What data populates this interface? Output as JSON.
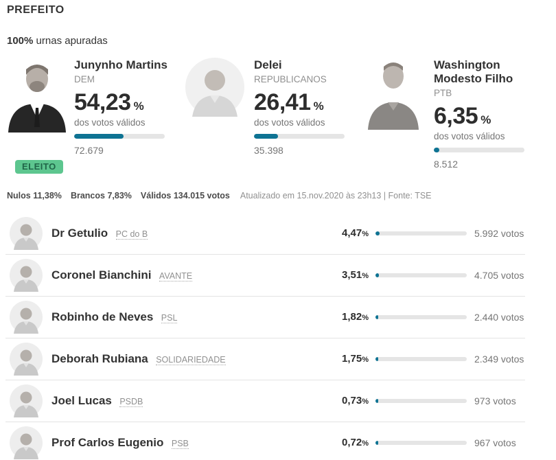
{
  "page": {
    "title": "PREFEITO",
    "apuracao_bold": "100%",
    "apuracao_rest": " urnas apuradas"
  },
  "labels": {
    "dos_votos": "dos votos válidos",
    "pct_symbol": "%"
  },
  "colors": {
    "accent_teal": "#0e7393",
    "bar_track": "#e5e5e5",
    "badge_green_bg": "#5dc68f",
    "badge_green_text": "#206648"
  },
  "top_candidates": [
    {
      "name": "Junynho Martins",
      "party": "DEM",
      "pct": "54,23",
      "pct_value": 54.23,
      "votes": "72.679",
      "badge": "ELEITO"
    },
    {
      "name": "Delei",
      "party": "REPUBLICANOS",
      "pct": "26,41",
      "pct_value": 26.41,
      "votes": "35.398",
      "badge": ""
    },
    {
      "name": "Washington Modesto Filho",
      "party": "PTB",
      "pct": "6,35",
      "pct_value": 6.35,
      "votes": "8.512",
      "badge": ""
    }
  ],
  "stats": {
    "nulos_label": "Nulos",
    "nulos_value": "11,38%",
    "brancos_label": "Brancos",
    "brancos_value": "7,83%",
    "validos_label": "Válidos",
    "validos_value": "134.015 votos",
    "updated": "Atualizado em 15.nov.2020 às 23h13 | Fonte: TSE"
  },
  "list": [
    {
      "name": "Dr Getulio",
      "party": "PC do B",
      "pct": "4,47",
      "pct_value": 4.47,
      "votes": "5.992 votos"
    },
    {
      "name": "Coronel Bianchini",
      "party": "AVANTE",
      "pct": "3,51",
      "pct_value": 3.51,
      "votes": "4.705 votos"
    },
    {
      "name": "Robinho de Neves",
      "party": "PSL",
      "pct": "1,82",
      "pct_value": 1.82,
      "votes": "2.440 votos"
    },
    {
      "name": "Deborah Rubiana",
      "party": "SOLIDARIEDADE",
      "pct": "1,75",
      "pct_value": 1.75,
      "votes": "2.349 votos"
    },
    {
      "name": "Joel Lucas",
      "party": "PSDB",
      "pct": "0,73",
      "pct_value": 0.73,
      "votes": "973 votos"
    },
    {
      "name": "Prof Carlos Eugenio",
      "party": "PSB",
      "pct": "0,72",
      "pct_value": 0.72,
      "votes": "967 votos"
    }
  ]
}
